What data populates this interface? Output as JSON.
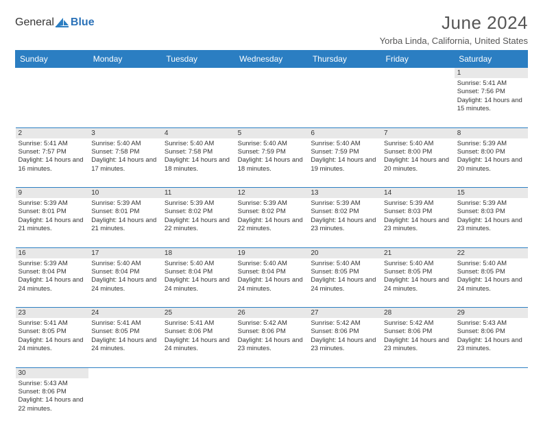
{
  "brand": {
    "general": "General",
    "blue": "Blue"
  },
  "title": "June 2024",
  "location": "Yorba Linda, California, United States",
  "headerColor": "#2b7ec2",
  "dayNumBg": "#e8e8e8",
  "weekdays": [
    "Sunday",
    "Monday",
    "Tuesday",
    "Wednesday",
    "Thursday",
    "Friday",
    "Saturday"
  ],
  "weeks": [
    [
      null,
      null,
      null,
      null,
      null,
      null,
      {
        "n": "1",
        "sr": "Sunrise: 5:41 AM",
        "ss": "Sunset: 7:56 PM",
        "dl": "Daylight: 14 hours and 15 minutes."
      }
    ],
    [
      {
        "n": "2",
        "sr": "Sunrise: 5:41 AM",
        "ss": "Sunset: 7:57 PM",
        "dl": "Daylight: 14 hours and 16 minutes."
      },
      {
        "n": "3",
        "sr": "Sunrise: 5:40 AM",
        "ss": "Sunset: 7:58 PM",
        "dl": "Daylight: 14 hours and 17 minutes."
      },
      {
        "n": "4",
        "sr": "Sunrise: 5:40 AM",
        "ss": "Sunset: 7:58 PM",
        "dl": "Daylight: 14 hours and 18 minutes."
      },
      {
        "n": "5",
        "sr": "Sunrise: 5:40 AM",
        "ss": "Sunset: 7:59 PM",
        "dl": "Daylight: 14 hours and 18 minutes."
      },
      {
        "n": "6",
        "sr": "Sunrise: 5:40 AM",
        "ss": "Sunset: 7:59 PM",
        "dl": "Daylight: 14 hours and 19 minutes."
      },
      {
        "n": "7",
        "sr": "Sunrise: 5:40 AM",
        "ss": "Sunset: 8:00 PM",
        "dl": "Daylight: 14 hours and 20 minutes."
      },
      {
        "n": "8",
        "sr": "Sunrise: 5:39 AM",
        "ss": "Sunset: 8:00 PM",
        "dl": "Daylight: 14 hours and 20 minutes."
      }
    ],
    [
      {
        "n": "9",
        "sr": "Sunrise: 5:39 AM",
        "ss": "Sunset: 8:01 PM",
        "dl": "Daylight: 14 hours and 21 minutes."
      },
      {
        "n": "10",
        "sr": "Sunrise: 5:39 AM",
        "ss": "Sunset: 8:01 PM",
        "dl": "Daylight: 14 hours and 21 minutes."
      },
      {
        "n": "11",
        "sr": "Sunrise: 5:39 AM",
        "ss": "Sunset: 8:02 PM",
        "dl": "Daylight: 14 hours and 22 minutes."
      },
      {
        "n": "12",
        "sr": "Sunrise: 5:39 AM",
        "ss": "Sunset: 8:02 PM",
        "dl": "Daylight: 14 hours and 22 minutes."
      },
      {
        "n": "13",
        "sr": "Sunrise: 5:39 AM",
        "ss": "Sunset: 8:02 PM",
        "dl": "Daylight: 14 hours and 23 minutes."
      },
      {
        "n": "14",
        "sr": "Sunrise: 5:39 AM",
        "ss": "Sunset: 8:03 PM",
        "dl": "Daylight: 14 hours and 23 minutes."
      },
      {
        "n": "15",
        "sr": "Sunrise: 5:39 AM",
        "ss": "Sunset: 8:03 PM",
        "dl": "Daylight: 14 hours and 23 minutes."
      }
    ],
    [
      {
        "n": "16",
        "sr": "Sunrise: 5:39 AM",
        "ss": "Sunset: 8:04 PM",
        "dl": "Daylight: 14 hours and 24 minutes."
      },
      {
        "n": "17",
        "sr": "Sunrise: 5:40 AM",
        "ss": "Sunset: 8:04 PM",
        "dl": "Daylight: 14 hours and 24 minutes."
      },
      {
        "n": "18",
        "sr": "Sunrise: 5:40 AM",
        "ss": "Sunset: 8:04 PM",
        "dl": "Daylight: 14 hours and 24 minutes."
      },
      {
        "n": "19",
        "sr": "Sunrise: 5:40 AM",
        "ss": "Sunset: 8:04 PM",
        "dl": "Daylight: 14 hours and 24 minutes."
      },
      {
        "n": "20",
        "sr": "Sunrise: 5:40 AM",
        "ss": "Sunset: 8:05 PM",
        "dl": "Daylight: 14 hours and 24 minutes."
      },
      {
        "n": "21",
        "sr": "Sunrise: 5:40 AM",
        "ss": "Sunset: 8:05 PM",
        "dl": "Daylight: 14 hours and 24 minutes."
      },
      {
        "n": "22",
        "sr": "Sunrise: 5:40 AM",
        "ss": "Sunset: 8:05 PM",
        "dl": "Daylight: 14 hours and 24 minutes."
      }
    ],
    [
      {
        "n": "23",
        "sr": "Sunrise: 5:41 AM",
        "ss": "Sunset: 8:05 PM",
        "dl": "Daylight: 14 hours and 24 minutes."
      },
      {
        "n": "24",
        "sr": "Sunrise: 5:41 AM",
        "ss": "Sunset: 8:05 PM",
        "dl": "Daylight: 14 hours and 24 minutes."
      },
      {
        "n": "25",
        "sr": "Sunrise: 5:41 AM",
        "ss": "Sunset: 8:06 PM",
        "dl": "Daylight: 14 hours and 24 minutes."
      },
      {
        "n": "26",
        "sr": "Sunrise: 5:42 AM",
        "ss": "Sunset: 8:06 PM",
        "dl": "Daylight: 14 hours and 23 minutes."
      },
      {
        "n": "27",
        "sr": "Sunrise: 5:42 AM",
        "ss": "Sunset: 8:06 PM",
        "dl": "Daylight: 14 hours and 23 minutes."
      },
      {
        "n": "28",
        "sr": "Sunrise: 5:42 AM",
        "ss": "Sunset: 8:06 PM",
        "dl": "Daylight: 14 hours and 23 minutes."
      },
      {
        "n": "29",
        "sr": "Sunrise: 5:43 AM",
        "ss": "Sunset: 8:06 PM",
        "dl": "Daylight: 14 hours and 23 minutes."
      }
    ],
    [
      {
        "n": "30",
        "sr": "Sunrise: 5:43 AM",
        "ss": "Sunset: 8:06 PM",
        "dl": "Daylight: 14 hours and 22 minutes."
      },
      null,
      null,
      null,
      null,
      null,
      null
    ]
  ]
}
